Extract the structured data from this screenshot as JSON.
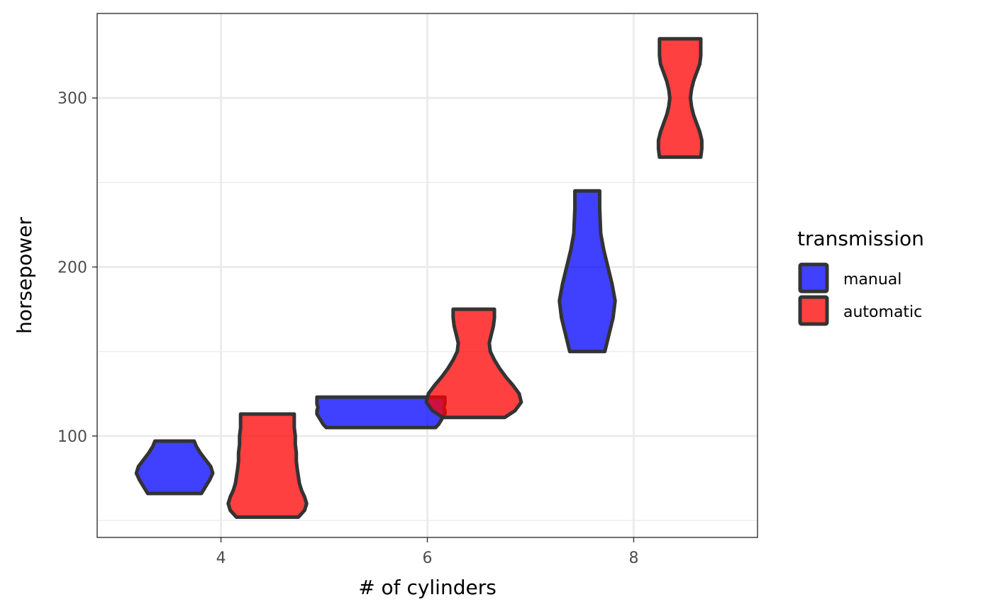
{
  "chart_data": {
    "type": "violin",
    "xlabel": "# of cylinders",
    "ylabel": "horsepower",
    "xlim": [
      2.8,
      9.2
    ],
    "ylim": [
      40,
      350
    ],
    "x_ticks": [
      4,
      6,
      8
    ],
    "y_ticks": [
      100,
      200,
      300
    ],
    "y_minor_ticks": [
      50,
      150,
      250
    ],
    "grid": true,
    "legend": {
      "title": "transmission",
      "position": "right",
      "entries": [
        {
          "label": "manual",
          "color": "#0000ff"
        },
        {
          "label": "automatic",
          "color": "#ff0000"
        }
      ]
    },
    "series": [
      {
        "name": "manual",
        "color": "#0000ff",
        "violins": [
          {
            "x": 4.0,
            "y": [
              66,
              70,
              74,
              78,
              82,
              86,
              90,
              94,
              97
            ],
            "width": [
              0.26,
              0.3,
              0.34,
              0.37,
              0.35,
              0.3,
              0.25,
              0.21,
              0.19
            ]
          },
          {
            "x": 6.0,
            "y": [
              105,
              107,
              109,
              111,
              113,
              115,
              117,
              119,
              121,
              123
            ],
            "width": [
              0.53,
              0.56,
              0.58,
              0.6,
              0.62,
              0.62,
              0.61,
              0.62,
              0.62,
              0.62
            ]
          },
          {
            "x": 8.0,
            "y": [
              150,
              160,
              170,
              180,
              190,
              200,
              210,
              220,
              235,
              245
            ],
            "width": [
              0.17,
              0.21,
              0.25,
              0.27,
              0.24,
              0.2,
              0.16,
              0.13,
              0.12,
              0.12
            ]
          }
        ]
      },
      {
        "name": "automatic",
        "color": "#ff0000",
        "violins": [
          {
            "x": 4.0,
            "y": [
              52,
              56,
              60,
              64,
              68,
              72,
              76,
              80,
              85,
              90,
              95,
              100,
              105,
              113
            ],
            "width": [
              0.3,
              0.36,
              0.38,
              0.36,
              0.33,
              0.31,
              0.3,
              0.29,
              0.28,
              0.28,
              0.27,
              0.27,
              0.26,
              0.26
            ]
          },
          {
            "x": 6.0,
            "y": [
              111,
              115,
              120,
              125,
              130,
              135,
              140,
              145,
              150,
              155,
              160,
              165,
              170,
              175
            ],
            "width": [
              0.3,
              0.4,
              0.46,
              0.44,
              0.38,
              0.31,
              0.25,
              0.2,
              0.16,
              0.15,
              0.17,
              0.19,
              0.2,
              0.2
            ]
          },
          {
            "x": 8.0,
            "y": [
              265,
              270,
              275,
              280,
              285,
              290,
              295,
              300,
              305,
              310,
              315,
              320,
              325,
              335
            ],
            "width": [
              0.2,
              0.21,
              0.21,
              0.19,
              0.16,
              0.13,
              0.11,
              0.1,
              0.11,
              0.13,
              0.16,
              0.19,
              0.2,
              0.2
            ]
          }
        ]
      }
    ]
  }
}
